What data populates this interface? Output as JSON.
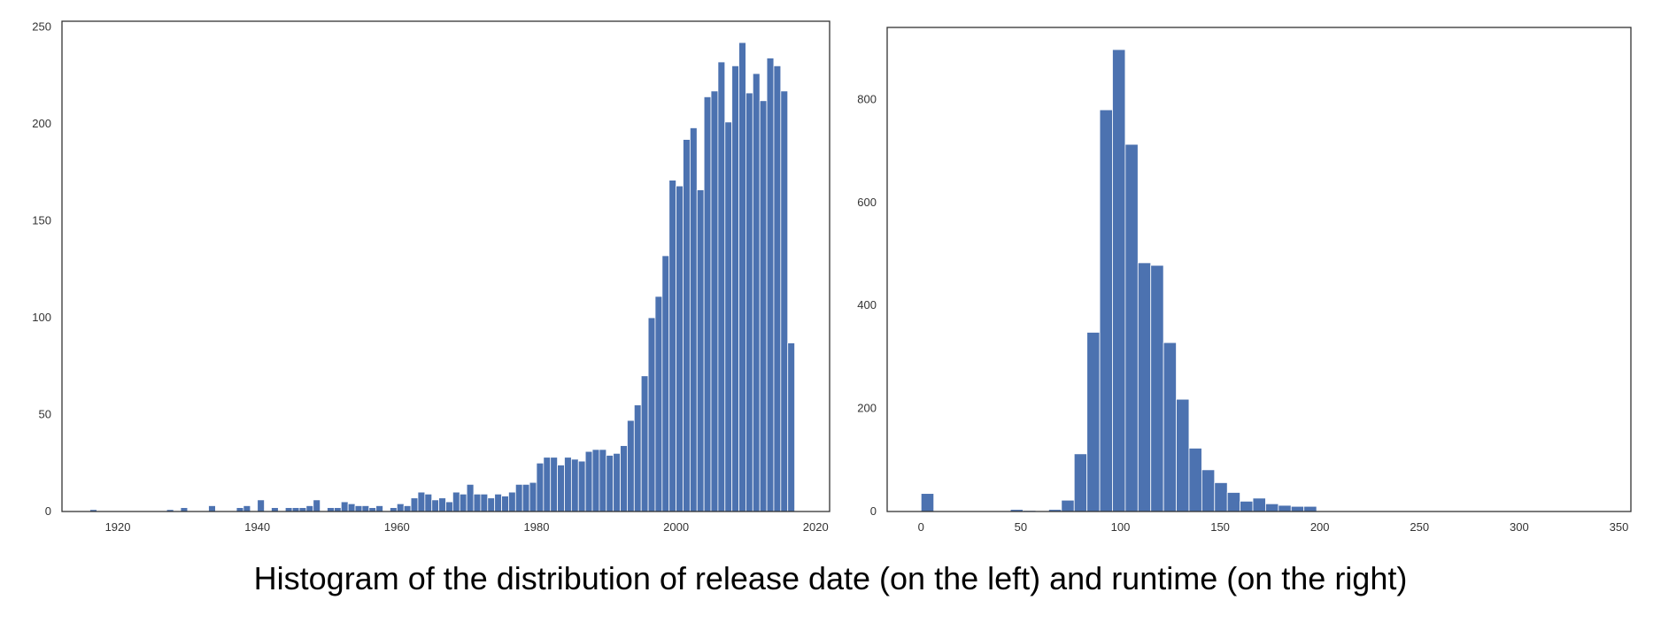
{
  "caption": "Histogram of the distribution of release date (on the left) and runtime (on the right)",
  "colors": {
    "bar": "#4c72b0",
    "axes": "#333333",
    "background": "#ffffff"
  },
  "chart_data": [
    {
      "type": "bar",
      "title": "",
      "xlabel": "",
      "ylabel": "",
      "grid": false,
      "xlim": [
        1912,
        2022
      ],
      "ylim": [
        0,
        253
      ],
      "xticks": [
        1920,
        1940,
        1960,
        1980,
        2000,
        2020
      ],
      "yticks": [
        0,
        50,
        100,
        150,
        200,
        250
      ],
      "bin_width": 1,
      "x": [
        1916,
        1917,
        1918,
        1919,
        1920,
        1921,
        1922,
        1923,
        1924,
        1925,
        1926,
        1927,
        1928,
        1929,
        1930,
        1931,
        1932,
        1933,
        1934,
        1935,
        1936,
        1937,
        1938,
        1939,
        1940,
        1941,
        1942,
        1943,
        1944,
        1945,
        1946,
        1947,
        1948,
        1949,
        1950,
        1951,
        1952,
        1953,
        1954,
        1955,
        1956,
        1957,
        1958,
        1959,
        1960,
        1961,
        1962,
        1963,
        1964,
        1965,
        1966,
        1967,
        1968,
        1969,
        1970,
        1971,
        1972,
        1973,
        1974,
        1975,
        1976,
        1977,
        1978,
        1979,
        1980,
        1981,
        1982,
        1983,
        1984,
        1985,
        1986,
        1987,
        1988,
        1989,
        1990,
        1991,
        1992,
        1993,
        1994,
        1995,
        1996,
        1997,
        1998,
        1999,
        2000,
        2001,
        2002,
        2003,
        2004,
        2005,
        2006,
        2007,
        2008,
        2009,
        2010,
        2011,
        2012,
        2013,
        2014,
        2015,
        2016
      ],
      "values": [
        1,
        0,
        0,
        0,
        0,
        0,
        0,
        0,
        0,
        0,
        0,
        1,
        0,
        2,
        0,
        0,
        0,
        3,
        0,
        0,
        0,
        2,
        3,
        0,
        6,
        0,
        2,
        0,
        2,
        2,
        2,
        3,
        6,
        0,
        2,
        2,
        5,
        4,
        3,
        3,
        2,
        3,
        0,
        2,
        4,
        3,
        7,
        10,
        9,
        6,
        7,
        5,
        10,
        9,
        14,
        9,
        9,
        7,
        9,
        8,
        10,
        14,
        14,
        15,
        25,
        28,
        28,
        24,
        28,
        27,
        26,
        31,
        32,
        32,
        29,
        30,
        34,
        47,
        55,
        70,
        100,
        111,
        132,
        171,
        168,
        192,
        198,
        166,
        214,
        217,
        232,
        201,
        230,
        242,
        216,
        226,
        212,
        234,
        230,
        217,
        87
      ]
    },
    {
      "type": "bar",
      "title": "",
      "xlabel": "",
      "ylabel": "",
      "grid": false,
      "xlim": [
        -17,
        356
      ],
      "ylim": [
        0,
        940
      ],
      "xticks": [
        0,
        50,
        100,
        150,
        200,
        250,
        300,
        350
      ],
      "yticks": [
        0,
        200,
        400,
        600,
        800
      ],
      "bin_width": 6.4,
      "x": [
        0,
        6.4,
        12.8,
        19.2,
        25.6,
        32,
        38.4,
        44.8,
        51.2,
        57.6,
        64,
        70.4,
        76.8,
        83.2,
        89.6,
        96,
        102.4,
        108.8,
        115.2,
        121.6,
        128,
        134.4,
        140.8,
        147.2,
        153.6,
        160,
        166.4,
        172.8,
        179.2,
        185.6,
        192,
        198.4,
        204.8,
        211.2,
        217.6,
        224,
        230.4,
        236.8,
        243.2,
        249.6,
        256,
        262.4,
        268.8,
        275.2,
        281.6,
        288,
        294.4,
        300.8,
        307.2,
        313.6,
        320
      ],
      "values": [
        35,
        0,
        0,
        0,
        0,
        0,
        0,
        4,
        2,
        1,
        4,
        22,
        112,
        348,
        780,
        897,
        713,
        483,
        478,
        328,
        218,
        123,
        81,
        56,
        37,
        20,
        26,
        15,
        12,
        10,
        10,
        0,
        0,
        0,
        0,
        0,
        0,
        0,
        0,
        0,
        0,
        0,
        0,
        0,
        0,
        0,
        0,
        0,
        0,
        0,
        1
      ]
    }
  ]
}
